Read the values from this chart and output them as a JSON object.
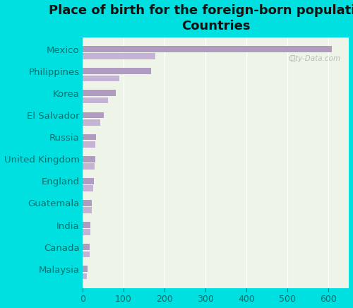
{
  "title": "Place of birth for the foreign-born population -\nCountries",
  "categories": [
    "Mexico",
    "Philippines",
    "Korea",
    "El Salvador",
    "Russia",
    "United Kingdom",
    "England",
    "Guatemala",
    "India",
    "Canada",
    "Malaysia"
  ],
  "values1": [
    608,
    168,
    82,
    52,
    33,
    32,
    28,
    23,
    20,
    18,
    12
  ],
  "values2": [
    178,
    90,
    63,
    43,
    31,
    30,
    27,
    22,
    19,
    17,
    11
  ],
  "bar_color1": "#b09cc0",
  "bar_color2": "#c4b3d4",
  "bg_color": "#00e0e0",
  "plot_bg": "#eef5e8",
  "grid_color": "#ffffff",
  "label_color": "#007070",
  "tick_color": "#007070",
  "title_color": "#111111",
  "xlim": [
    0,
    650
  ],
  "xticks": [
    0,
    100,
    200,
    300,
    400,
    500,
    600
  ],
  "title_fontsize": 13,
  "label_fontsize": 9.5,
  "tick_fontsize": 9
}
